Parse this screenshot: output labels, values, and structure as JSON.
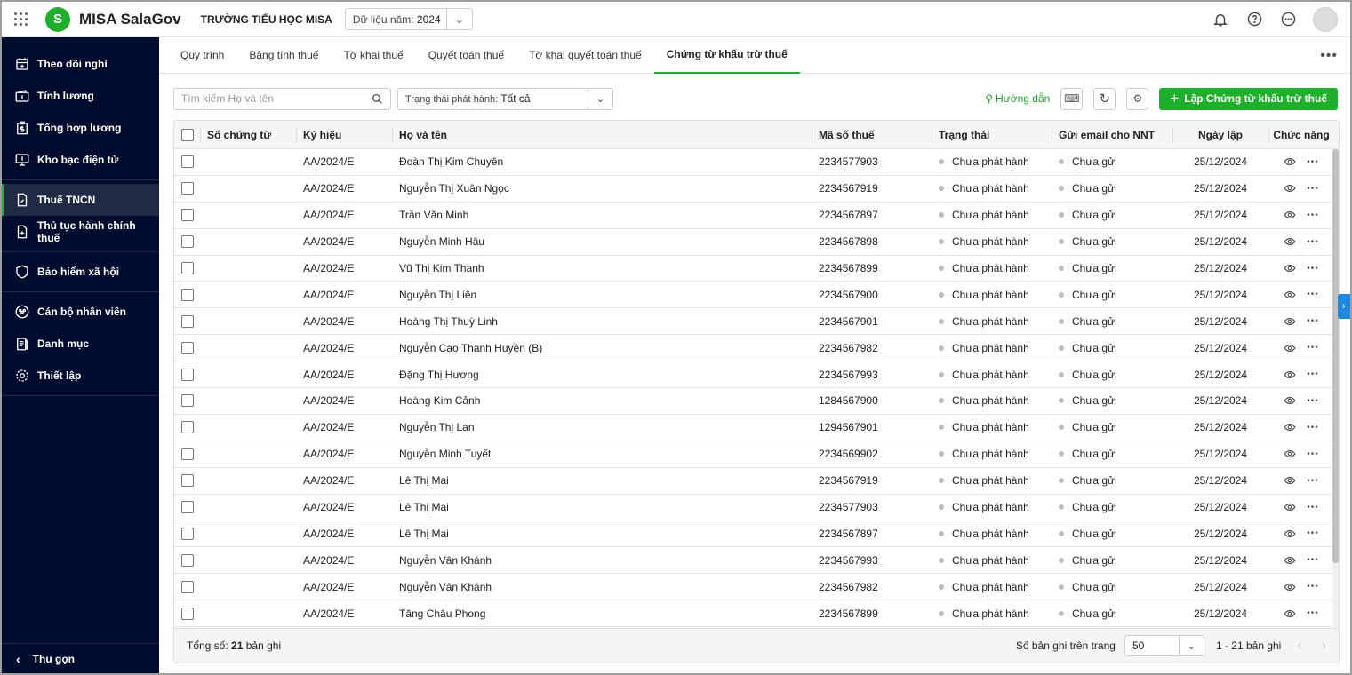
{
  "header": {
    "app_name": "MISA SalaGov",
    "school": "TRƯỜNG TIỂU HỌC MISA",
    "year_label": "Dữ liệu năm:",
    "year_value": "2024"
  },
  "sidebar": {
    "items": [
      {
        "label": "Theo dõi nghỉ",
        "icon": "calendar-plus-icon"
      },
      {
        "label": "Tính lương",
        "icon": "wallet-icon"
      },
      {
        "label": "Tổng hợp lương",
        "icon": "clipboard-dollar-icon"
      },
      {
        "label": "Kho bạc điện tử",
        "icon": "monitor-dollar-icon"
      },
      {
        "label": "Thuế TNCN",
        "icon": "tax-document-icon",
        "active": true
      },
      {
        "label": "Thủ tục hành chính thuế",
        "icon": "document-plus-icon"
      },
      {
        "label": "Bảo hiểm xã hội",
        "icon": "shield-heart-icon"
      },
      {
        "label": "Cán bộ nhân viên",
        "icon": "people-icon"
      },
      {
        "label": "Danh mục",
        "icon": "list-document-icon"
      },
      {
        "label": "Thiết lập",
        "icon": "gear-icon"
      }
    ],
    "collapse_label": "Thu gọn"
  },
  "tabs": [
    {
      "label": "Quy trình"
    },
    {
      "label": "Bảng tính thuế"
    },
    {
      "label": "Tờ khai thuế"
    },
    {
      "label": "Quyết toán thuế"
    },
    {
      "label": "Tờ khai quyết toán thuế"
    },
    {
      "label": "Chứng từ khấu trừ thuế",
      "active": true
    }
  ],
  "toolbar": {
    "search_placeholder": "Tìm kiếm Họ và tên",
    "status_label": "Trạng thái phát hành:",
    "status_value": "Tất cả",
    "guide_label": "Hướng dẫn",
    "add_label": "Lập Chứng từ khấu trừ thuế"
  },
  "table": {
    "columns": [
      "Số chứng từ",
      "Ký hiệu",
      "Họ và tên",
      "Mã số thuế",
      "Trạng thái",
      "Gửi email cho NNT",
      "Ngày lập",
      "Chức năng"
    ],
    "rows": [
      [
        "",
        "AA/2024/E",
        "Đoàn Thị Kim Chuyên",
        "2234577903",
        "Chưa phát hành",
        "Chưa gửi",
        "25/12/2024"
      ],
      [
        "",
        "AA/2024/E",
        "Nguyễn Thị Xuân Ngọc",
        "2234567919",
        "Chưa phát hành",
        "Chưa gửi",
        "25/12/2024"
      ],
      [
        "",
        "AA/2024/E",
        "Trần Văn Minh",
        "2234567897",
        "Chưa phát hành",
        "Chưa gửi",
        "25/12/2024"
      ],
      [
        "",
        "AA/2024/E",
        "Nguyễn Minh Hậu",
        "2234567898",
        "Chưa phát hành",
        "Chưa gửi",
        "25/12/2024"
      ],
      [
        "",
        "AA/2024/E",
        "Vũ Thị Kim Thanh",
        "2234567899",
        "Chưa phát hành",
        "Chưa gửi",
        "25/12/2024"
      ],
      [
        "",
        "AA/2024/E",
        "Nguyễn Thị Liên",
        "2234567900",
        "Chưa phát hành",
        "Chưa gửi",
        "25/12/2024"
      ],
      [
        "",
        "AA/2024/E",
        "Hoàng Thị Thuỳ Linh",
        "2234567901",
        "Chưa phát hành",
        "Chưa gửi",
        "25/12/2024"
      ],
      [
        "",
        "AA/2024/E",
        "Nguyễn Cao Thanh Huyền (B)",
        "2234567982",
        "Chưa phát hành",
        "Chưa gửi",
        "25/12/2024"
      ],
      [
        "",
        "AA/2024/E",
        "Đặng Thị Hương",
        "2234567993",
        "Chưa phát hành",
        "Chưa gửi",
        "25/12/2024"
      ],
      [
        "",
        "AA/2024/E",
        "Hoàng Kim Cảnh",
        "1284567900",
        "Chưa phát hành",
        "Chưa gửi",
        "25/12/2024"
      ],
      [
        "",
        "AA/2024/E",
        "Nguyễn Thị Lan",
        "1294567901",
        "Chưa phát hành",
        "Chưa gửi",
        "25/12/2024"
      ],
      [
        "",
        "AA/2024/E",
        "Nguyễn Minh Tuyết",
        "2234569902",
        "Chưa phát hành",
        "Chưa gửi",
        "25/12/2024"
      ],
      [
        "",
        "AA/2024/E",
        "Lê Thị Mai",
        "2234567919",
        "Chưa phát hành",
        "Chưa gửi",
        "25/12/2024"
      ],
      [
        "",
        "AA/2024/E",
        "Lê Thị Mai",
        "2234577903",
        "Chưa phát hành",
        "Chưa gửi",
        "25/12/2024"
      ],
      [
        "",
        "AA/2024/E",
        "Lê Thị Mai",
        "2234567897",
        "Chưa phát hành",
        "Chưa gửi",
        "25/12/2024"
      ],
      [
        "",
        "AA/2024/E",
        "Nguyễn Vân Khánh",
        "2234567993",
        "Chưa phát hành",
        "Chưa gửi",
        "25/12/2024"
      ],
      [
        "",
        "AA/2024/E",
        "Nguyễn Vân Khánh",
        "2234567982",
        "Chưa phát hành",
        "Chưa gửi",
        "25/12/2024"
      ],
      [
        "",
        "AA/2024/E",
        "Tăng Châu Phong",
        "2234567899",
        "Chưa phát hành",
        "Chưa gửi",
        "25/12/2024"
      ]
    ]
  },
  "footer": {
    "total_label": "Tổng số:",
    "total_value": "21",
    "total_unit": "bản ghi",
    "page_size_label": "Số bản ghi trên trang",
    "page_size": "50",
    "range": "1 - 21 bản ghi"
  },
  "colors": {
    "accent": "#1fb02b",
    "sidebar_bg": "#000c2d",
    "status_dot": "#bdbdbd"
  }
}
